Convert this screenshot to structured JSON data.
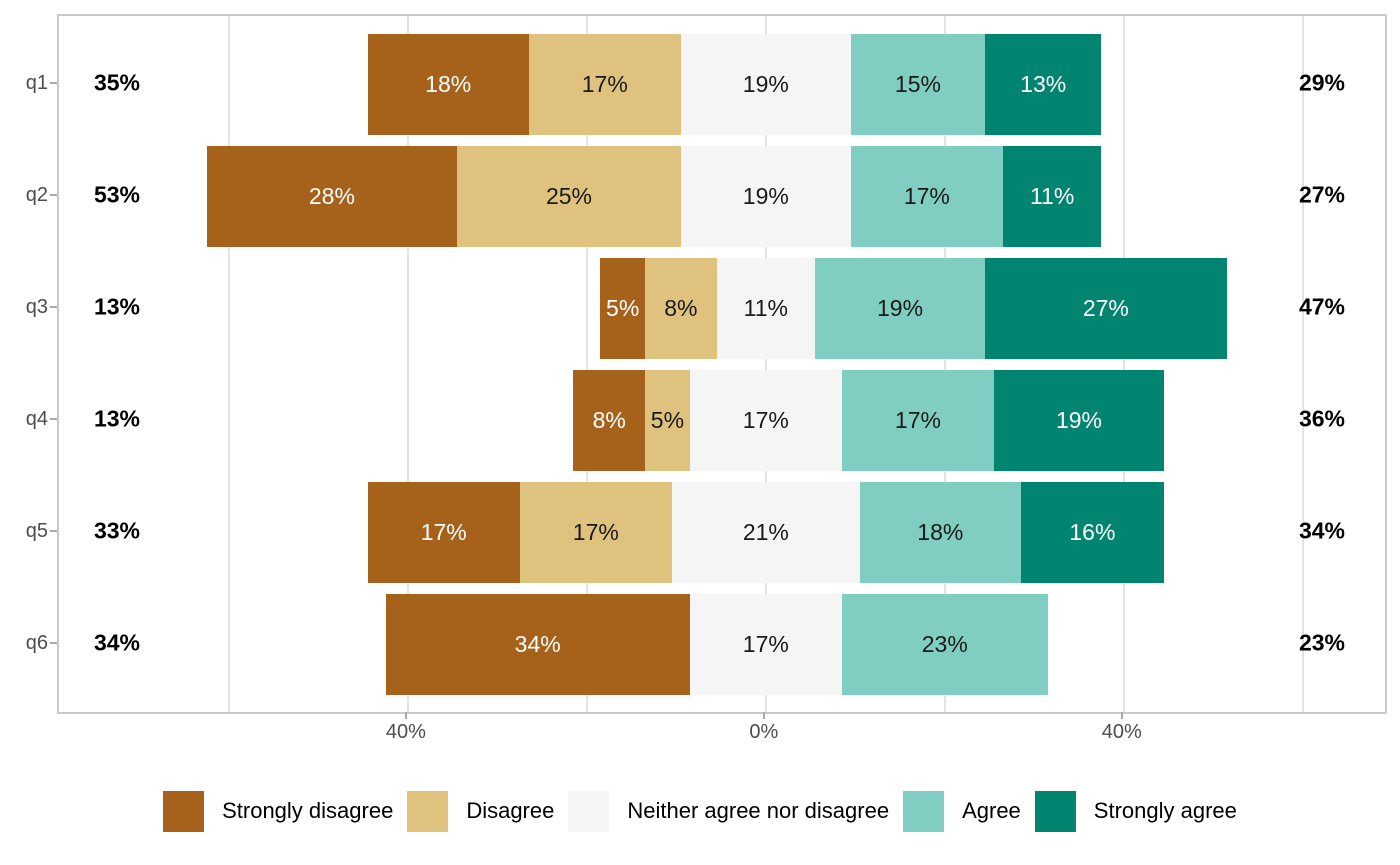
{
  "chart_data": {
    "type": "bar",
    "subtype": "diverging-stacked-likert-horizontal",
    "title": "",
    "categories": [
      "q1",
      "q2",
      "q3",
      "q4",
      "q5",
      "q6"
    ],
    "levels": [
      "Strongly disagree",
      "Disagree",
      "Neither agree nor disagree",
      "Agree",
      "Strongly agree"
    ],
    "colors": [
      "#a6611a",
      "#dfc27d",
      "#f5f5f5",
      "#80cdc1",
      "#018571"
    ],
    "segment_label_colors": [
      "#ffffff",
      "#1a1a1a",
      "#1a1a1a",
      "#1a1a1a",
      "#ffffff"
    ],
    "neutral_centered_on_zero": true,
    "rows": [
      {
        "category": "q1",
        "values": [
          18,
          17,
          19,
          15,
          13
        ],
        "labels": [
          "18%",
          "17%",
          "19%",
          "15%",
          "13%"
        ],
        "left_total": "35%",
        "right_total": "29%"
      },
      {
        "category": "q2",
        "values": [
          28,
          25,
          19,
          17,
          11
        ],
        "labels": [
          "28%",
          "25%",
          "19%",
          "17%",
          "11%"
        ],
        "left_total": "53%",
        "right_total": "27%"
      },
      {
        "category": "q3",
        "values": [
          5,
          8,
          11,
          19,
          27
        ],
        "labels": [
          "5%",
          "8%",
          "11%",
          "19%",
          "27%"
        ],
        "left_total": "13%",
        "right_total": "47%"
      },
      {
        "category": "q4",
        "values": [
          8,
          5,
          17,
          17,
          19
        ],
        "labels": [
          "8%",
          "5%",
          "17%",
          "17%",
          "19%"
        ],
        "left_total": "13%",
        "right_total": "36%"
      },
      {
        "category": "q5",
        "values": [
          17,
          17,
          21,
          18,
          16
        ],
        "labels": [
          "17%",
          "17%",
          "21%",
          "18%",
          "16%"
        ],
        "left_total": "33%",
        "right_total": "34%"
      },
      {
        "category": "q6",
        "values": [
          34,
          0,
          17,
          23,
          0
        ],
        "labels": [
          "34%",
          "",
          "17%",
          "23%",
          ""
        ],
        "left_total": "34%",
        "right_total": "23%"
      }
    ],
    "x_axis": {
      "domain": [
        -79,
        69.2
      ],
      "ticks": [
        {
          "value": -40,
          "label": "40%"
        },
        {
          "value": 0,
          "label": "0%"
        },
        {
          "value": 40,
          "label": "40%"
        }
      ],
      "gridlines": [
        -60,
        -40,
        -20,
        0,
        20,
        40,
        60
      ]
    },
    "legend": [
      {
        "label": "Strongly disagree",
        "color": "#a6611a"
      },
      {
        "label": "Disagree",
        "color": "#dfc27d"
      },
      {
        "label": "Neither agree nor disagree",
        "color": "#f5f5f5"
      },
      {
        "label": "Agree",
        "color": "#80cdc1"
      },
      {
        "label": "Strongly agree",
        "color": "#018571"
      }
    ],
    "legend_position": "bottom",
    "grid": true
  }
}
